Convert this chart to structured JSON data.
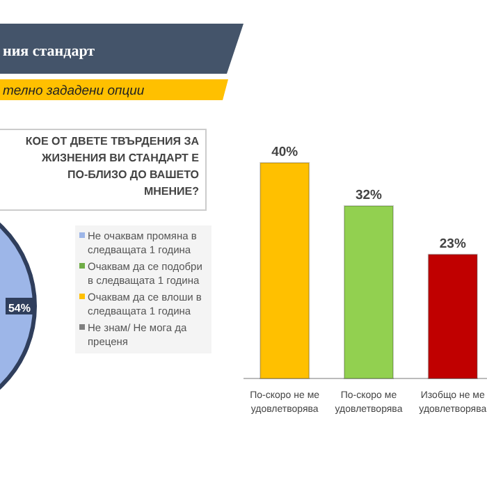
{
  "chart_data": [
    {
      "type": "pie",
      "title": "ния стандарт",
      "subtitle": "телно зададени опции",
      "annotations": [
        "КОЕ ОТ ДВЕТЕ ТВЪРДЕНИЯ ЗА ЖИЗНЕНИЯ ВИ СТАНДАРТ Е ПО-БЛИЗО ДО ВАШЕТО МНЕНИЕ?"
      ],
      "categories": [
        "Не очаквам промяна в следващата 1 година",
        "Очаквам да се подобри в следващата 1 година",
        "Очаквам да се влоши в следващата 1 година",
        "Не знам/ Не мога да преценя"
      ],
      "values": [
        54,
        null,
        null,
        null
      ],
      "value_labels": [
        "54%",
        null,
        null,
        null
      ],
      "colors": [
        "#9db6e8",
        "#70ad47",
        "#ffc000",
        "#7f7f7f"
      ],
      "legend": "right"
    },
    {
      "type": "bar",
      "categories": [
        "По-скоро не ме удовлетворява",
        "По-скоро ме удовлетворява",
        "Изобщо не ме удовлетворява"
      ],
      "values": [
        40,
        32,
        23
      ],
      "value_labels": [
        "40%",
        "32%",
        "23%"
      ],
      "colors": [
        "#ffc000",
        "#92d050",
        "#c00000"
      ]
    }
  ]
}
